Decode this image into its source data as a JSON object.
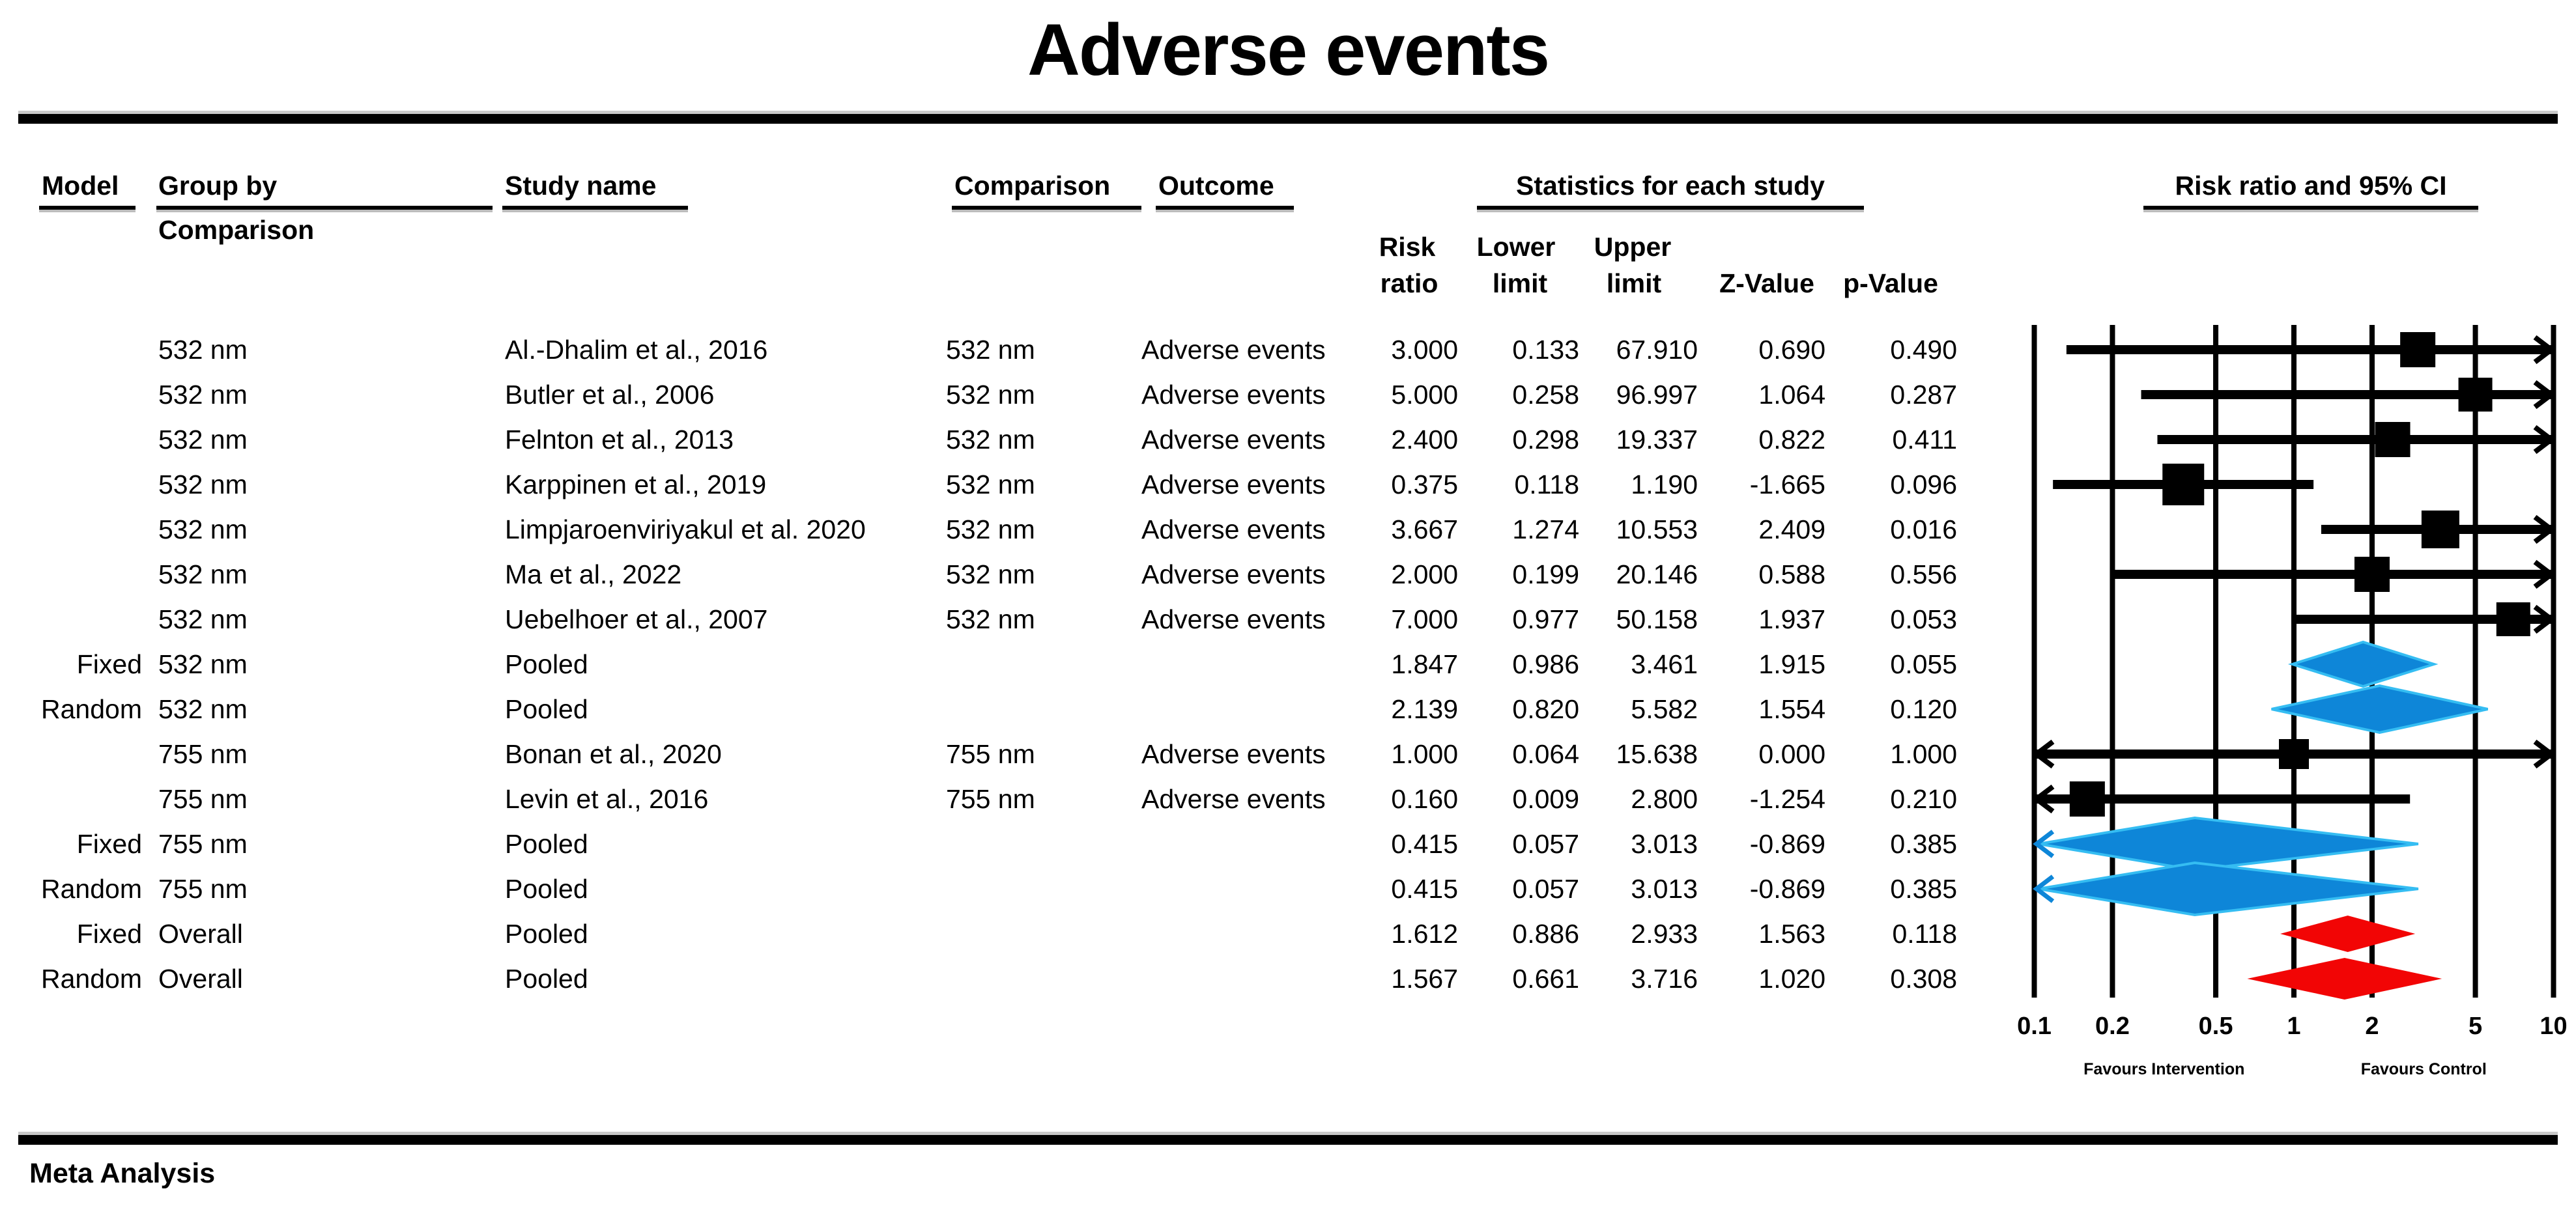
{
  "title": "Adverse events",
  "footer": {
    "label": "Meta Analysis"
  },
  "table": {
    "headers": {
      "model": "Model",
      "group_by_line1": "Group by",
      "group_by_line2": "Comparison",
      "study_name": "Study name",
      "comparison": "Comparison",
      "outcome": "Outcome",
      "statistics": "Statistics for each study",
      "plot": "Risk ratio and 95% CI"
    },
    "sub_headers": {
      "risk": "Risk",
      "ratio": "ratio",
      "lower": "Lower",
      "limit1": "limit",
      "upper": "Upper",
      "limit2": "limit",
      "z": "Z-Value",
      "p": "p-Value"
    },
    "rows": [
      {
        "model": "",
        "group": "532 nm",
        "study": "Al.-Dhalim et al., 2016",
        "comparison": "532 nm",
        "outcome": "Adverse events",
        "rr": "3.000",
        "lower": "0.133",
        "upper": "67.910",
        "z": "0.690",
        "p": "0.490"
      },
      {
        "model": "",
        "group": "532 nm",
        "study": "Butler et al., 2006",
        "comparison": "532 nm",
        "outcome": "Adverse events",
        "rr": "5.000",
        "lower": "0.258",
        "upper": "96.997",
        "z": "1.064",
        "p": "0.287"
      },
      {
        "model": "",
        "group": "532 nm",
        "study": "Felnton et al., 2013",
        "comparison": "532 nm",
        "outcome": "Adverse events",
        "rr": "2.400",
        "lower": "0.298",
        "upper": "19.337",
        "z": "0.822",
        "p": "0.411"
      },
      {
        "model": "",
        "group": "532 nm",
        "study": "Karppinen et al., 2019",
        "comparison": "532 nm",
        "outcome": "Adverse events",
        "rr": "0.375",
        "lower": "0.118",
        "upper": "1.190",
        "z": "-1.665",
        "p": "0.096"
      },
      {
        "model": "",
        "group": "532 nm",
        "study": "Limpjaroenviriyakul et al. 2020",
        "comparison": "532 nm",
        "outcome": "Adverse events",
        "rr": "3.667",
        "lower": "1.274",
        "upper": "10.553",
        "z": "2.409",
        "p": "0.016"
      },
      {
        "model": "",
        "group": "532 nm",
        "study": "Ma et al., 2022",
        "comparison": "532 nm",
        "outcome": "Adverse events",
        "rr": "2.000",
        "lower": "0.199",
        "upper": "20.146",
        "z": "0.588",
        "p": "0.556"
      },
      {
        "model": "",
        "group": "532 nm",
        "study": "Uebelhoer et al., 2007",
        "comparison": "532 nm",
        "outcome": "Adverse events",
        "rr": "7.000",
        "lower": "0.977",
        "upper": "50.158",
        "z": "1.937",
        "p": "0.053"
      },
      {
        "model": "Fixed",
        "group": "532 nm",
        "study": "Pooled",
        "comparison": "",
        "outcome": "",
        "rr": "1.847",
        "lower": "0.986",
        "upper": "3.461",
        "z": "1.915",
        "p": "0.055"
      },
      {
        "model": "Random",
        "group": "532 nm",
        "study": "Pooled",
        "comparison": "",
        "outcome": "",
        "rr": "2.139",
        "lower": "0.820",
        "upper": "5.582",
        "z": "1.554",
        "p": "0.120"
      },
      {
        "model": "",
        "group": "755 nm",
        "study": "Bonan et al., 2020",
        "comparison": "755 nm",
        "outcome": "Adverse events",
        "rr": "1.000",
        "lower": "0.064",
        "upper": "15.638",
        "z": "0.000",
        "p": "1.000"
      },
      {
        "model": "",
        "group": "755 nm",
        "study": "Levin et al., 2016",
        "comparison": "755 nm",
        "outcome": "Adverse events",
        "rr": "0.160",
        "lower": "0.009",
        "upper": "2.800",
        "z": "-1.254",
        "p": "0.210"
      },
      {
        "model": "Fixed",
        "group": "755 nm",
        "study": "Pooled",
        "comparison": "",
        "outcome": "",
        "rr": "0.415",
        "lower": "0.057",
        "upper": "3.013",
        "z": "-0.869",
        "p": "0.385"
      },
      {
        "model": "Random",
        "group": "755 nm",
        "study": "Pooled",
        "comparison": "",
        "outcome": "",
        "rr": "0.415",
        "lower": "0.057",
        "upper": "3.013",
        "z": "-0.869",
        "p": "0.385"
      },
      {
        "model": "Fixed",
        "group": "Overall",
        "study": "Pooled",
        "comparison": "",
        "outcome": "",
        "rr": "1.612",
        "lower": "0.886",
        "upper": "2.933",
        "z": "1.563",
        "p": "0.118"
      },
      {
        "model": "Random",
        "group": "Overall",
        "study": "Pooled",
        "comparison": "",
        "outcome": "",
        "rr": "1.567",
        "lower": "0.661",
        "upper": "3.716",
        "z": "1.020",
        "p": "0.308"
      }
    ]
  },
  "chart_data": {
    "type": "forest",
    "title": "Risk ratio and 95% CI",
    "x_axis": {
      "scale": "log",
      "min": 0.1,
      "max": 10,
      "ticks": [
        0.1,
        0.2,
        0.5,
        1,
        2,
        5,
        10
      ],
      "tick_labels": [
        "0.1",
        "0.2",
        "0.5",
        "1",
        "2",
        "5",
        "10"
      ]
    },
    "favours_left": "Favours Intervention",
    "favours_right": "Favours Control",
    "colors": {
      "study": "#000000",
      "pooled": "#0e86d8",
      "pooled_edge": "#35bdf2",
      "overall": "#f20505"
    },
    "rows": [
      {
        "kind": "study",
        "value": 3.0,
        "lower": 0.133,
        "upper": 67.91,
        "marker_px": 54
      },
      {
        "kind": "study",
        "value": 5.0,
        "lower": 0.258,
        "upper": 96.997,
        "marker_px": 52
      },
      {
        "kind": "study",
        "value": 2.4,
        "lower": 0.298,
        "upper": 19.337,
        "marker_px": 54
      },
      {
        "kind": "study",
        "value": 0.375,
        "lower": 0.118,
        "upper": 1.19,
        "marker_px": 64
      },
      {
        "kind": "study",
        "value": 3.667,
        "lower": 1.274,
        "upper": 10.553,
        "marker_px": 58
      },
      {
        "kind": "study",
        "value": 2.0,
        "lower": 0.199,
        "upper": 20.146,
        "marker_px": 54
      },
      {
        "kind": "study",
        "value": 7.0,
        "lower": 0.977,
        "upper": 50.158,
        "marker_px": 52
      },
      {
        "kind": "pooled",
        "value": 1.847,
        "lower": 0.986,
        "upper": 3.461,
        "half_h": 34
      },
      {
        "kind": "pooled",
        "value": 2.139,
        "lower": 0.82,
        "upper": 5.582,
        "half_h": 36
      },
      {
        "kind": "study",
        "value": 1.0,
        "lower": 0.064,
        "upper": 15.638,
        "marker_px": 46
      },
      {
        "kind": "study",
        "value": 0.16,
        "lower": 0.009,
        "upper": 2.8,
        "marker_px": 54
      },
      {
        "kind": "pooled",
        "value": 0.415,
        "lower": 0.057,
        "upper": 3.013,
        "half_h": 40
      },
      {
        "kind": "pooled",
        "value": 0.415,
        "lower": 0.057,
        "upper": 3.013,
        "half_h": 40
      },
      {
        "kind": "overall",
        "value": 1.612,
        "lower": 0.886,
        "upper": 2.933,
        "half_h": 28
      },
      {
        "kind": "overall",
        "value": 1.567,
        "lower": 0.661,
        "upper": 3.716,
        "half_h": 32
      }
    ]
  }
}
